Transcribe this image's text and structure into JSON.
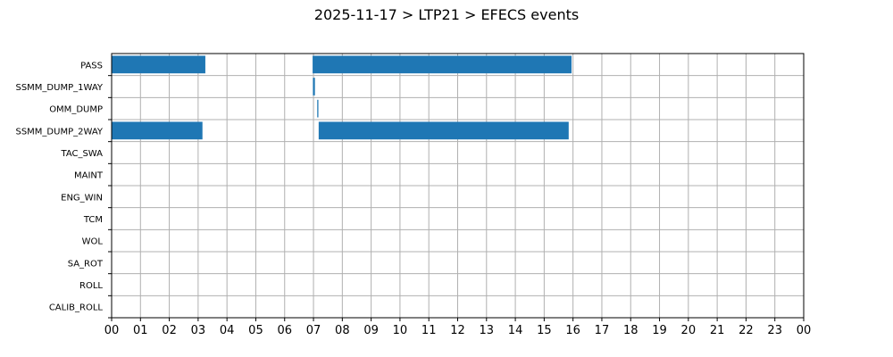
{
  "chart_data": {
    "type": "bar",
    "orientation": "horizontal",
    "title": "2025-11-17 > LTP21 > EFECS events",
    "xlabel": "",
    "ylabel": "",
    "grid": true,
    "categories": [
      "PASS",
      "SSMM_DUMP_1WAY",
      "OMM_DUMP",
      "SSMM_DUMP_2WAY",
      "TAC_SWA",
      "MAINT",
      "ENG_WIN",
      "TCM",
      "WOL",
      "SA_ROT",
      "ROLL",
      "CALIB_ROLL"
    ],
    "xlim": [
      0,
      24
    ],
    "x_tick_labels": [
      "00",
      "01",
      "02",
      "03",
      "04",
      "05",
      "06",
      "07",
      "08",
      "09",
      "10",
      "11",
      "12",
      "13",
      "14",
      "15",
      "16",
      "17",
      "18",
      "19",
      "20",
      "21",
      "22",
      "23",
      "00"
    ],
    "bar_color": "#1f77b4",
    "events": [
      {
        "category": "PASS",
        "start": 0.0,
        "end": 3.25
      },
      {
        "category": "PASS",
        "start": 6.97,
        "end": 15.95
      },
      {
        "category": "SSMM_DUMP_1WAY",
        "start": 6.98,
        "end": 7.05
      },
      {
        "category": "OMM_DUMP",
        "start": 7.13,
        "end": 7.17
      },
      {
        "category": "SSMM_DUMP_2WAY",
        "start": 0.0,
        "end": 3.15
      },
      {
        "category": "SSMM_DUMP_2WAY",
        "start": 7.18,
        "end": 15.85
      }
    ]
  }
}
